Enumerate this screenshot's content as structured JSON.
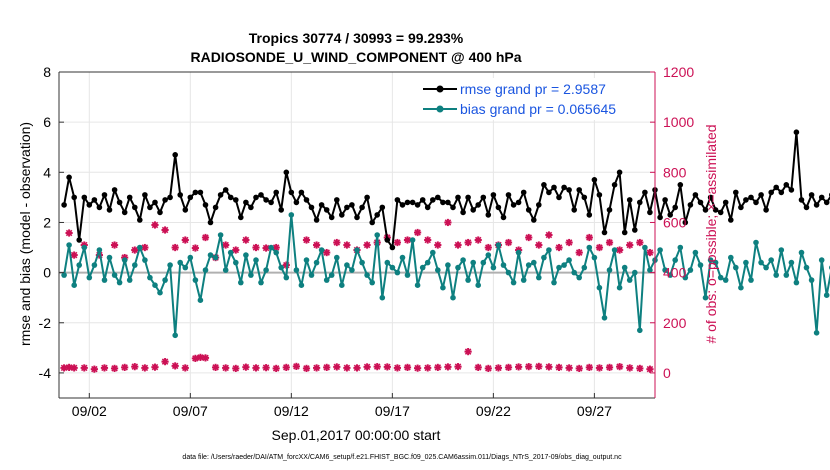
{
  "title_line1": "Tropics 30774 / 30993 = 99.293%",
  "title_line2": "RADIOSONDE_U_WIND_COMPONENT @ 400 hPa",
  "xlabel": "Sep.01,2017 00:00:00 start",
  "footer": "data file: /Users/raeder/DAI/ATM_forcXX/CAM6_setup/f.e21.FHIST_BGC.f09_025.CAM6assim.011/Diags_NTrS_2017-09/obs_diag_output.nc",
  "colors": {
    "rmse": "#000000",
    "bias": "#0e8080",
    "obs": "#cc1155",
    "zero": "#b0b0b0"
  },
  "chart_data": {
    "type": "line",
    "title": "Tropics 30774 / 30993 = 99.293%  RADIOSONDE_U_WIND_COMPONENT @ 400 hPa",
    "xlabel": "Sep.01,2017 00:00:00 start",
    "ylabel": "rmse and bias (model - observation)",
    "ylabel_right": "# of obs: o=possible; ×=assimilated",
    "xlim": [
      0.5,
      30.0
    ],
    "ylim": [
      -5,
      8
    ],
    "ylim_right": [
      -100,
      1200
    ],
    "xticks": [
      {
        "x": 2,
        "label": "09/02"
      },
      {
        "x": 7,
        "label": "09/07"
      },
      {
        "x": 12,
        "label": "09/12"
      },
      {
        "x": 17,
        "label": "09/17"
      },
      {
        "x": 22,
        "label": "09/22"
      },
      {
        "x": 27,
        "label": "09/27"
      }
    ],
    "yticks_left": [
      -4,
      -2,
      0,
      2,
      4,
      6,
      8
    ],
    "yticks_right": [
      0,
      200,
      400,
      600,
      800,
      1000,
      1200
    ],
    "x_start": 0.75,
    "x_step": 0.25,
    "legend": [
      {
        "label": "rmse grand pr = 2.9587",
        "series": "rmse"
      },
      {
        "label": "bias grand pr = 0.065645",
        "series": "bias"
      }
    ],
    "series": [
      {
        "name": "rmse",
        "axis": "left",
        "values": [
          2.7,
          3.8,
          3.0,
          1.3,
          3.0,
          2.7,
          2.9,
          2.6,
          3.1,
          2.5,
          3.3,
          2.8,
          2.4,
          3.0,
          2.6,
          2.1,
          3.1,
          2.6,
          2.8,
          2.4,
          2.9,
          3.0,
          4.7,
          3.1,
          2.5,
          3.0,
          3.2,
          3.2,
          2.7,
          2.0,
          2.6,
          3.1,
          3.3,
          3.0,
          2.9,
          2.2,
          2.8,
          2.6,
          3.0,
          3.1,
          2.9,
          2.8,
          3.2,
          2.5,
          4.0,
          3.2,
          2.8,
          3.2,
          2.9,
          2.6,
          2.1,
          2.7,
          2.5,
          2.2,
          2.9,
          2.3,
          2.6,
          2.7,
          2.2,
          2.6,
          3.0,
          2.0,
          2.3,
          2.6,
          1.3,
          1.0,
          2.9,
          2.7,
          2.8,
          2.8,
          2.7,
          2.9,
          2.6,
          2.9,
          3.0,
          2.8,
          2.8,
          2.6,
          3.0,
          2.4,
          3.0,
          2.5,
          2.7,
          3.0,
          2.3,
          3.1,
          2.6,
          2.2,
          3.1,
          2.7,
          2.8,
          3.2,
          2.5,
          2.1,
          2.7,
          3.5,
          3.2,
          3.4,
          3.0,
          3.4,
          3.3,
          2.5,
          3.3,
          3.0,
          2.3,
          3.7,
          3.1,
          1.6,
          2.5,
          3.5,
          4.0,
          1.6,
          2.9,
          1.7,
          2.8,
          3.2,
          2.4,
          3.3,
          2.2,
          2.9,
          2.3,
          2.6,
          3.5,
          2.0,
          2.7,
          3.1,
          2.8,
          2.5,
          3.0,
          2.5,
          2.4,
          2.8,
          2.1,
          3.2,
          2.6,
          2.9,
          3.0,
          2.8,
          3.1,
          2.5,
          3.2,
          3.4,
          3.2,
          3.5,
          3.3,
          5.6,
          2.9,
          2.6,
          3.1,
          2.7,
          3.0,
          2.8,
          3.1,
          3.2
        ]
      },
      {
        "name": "bias",
        "axis": "left",
        "values": [
          -0.1,
          1.1,
          -0.5,
          0.3,
          1.0,
          -0.2,
          0.3,
          0.9,
          -0.3,
          0.6,
          -0.1,
          -0.4,
          0.5,
          -0.3,
          0.3,
          1.0,
          0.5,
          -0.2,
          -0.5,
          -0.8,
          -0.3,
          0.3,
          -2.5,
          0.4,
          0.2,
          0.6,
          -0.3,
          -1.1,
          0.1,
          0.7,
          0.6,
          1.5,
          0.1,
          0.8,
          0.4,
          -0.4,
          0.7,
          -0.1,
          0.5,
          -0.4,
          0.1,
          1.0,
          0.8,
          0.2,
          -0.2,
          2.3,
          0.1,
          -0.5,
          0.5,
          -0.1,
          0.4,
          0.9,
          -0.3,
          -0.1,
          0.6,
          -0.5,
          0.3,
          0.1,
          0.9,
          0.4,
          -0.1,
          -0.4,
          1.5,
          -1.0,
          0.4,
          0.2,
          0.0,
          0.6,
          -0.1,
          1.3,
          -0.5,
          0.2,
          0.4,
          0.8,
          0.1,
          -0.6,
          0.3,
          -1.0,
          0.2,
          0.5,
          -0.3,
          0.4,
          -0.5,
          0.4,
          0.7,
          0.2,
          1.1,
          0.3,
          0.0,
          -0.4,
          0.8,
          -0.3,
          0.3,
          0.4,
          -0.2,
          0.6,
          0.9,
          -0.4,
          0.2,
          0.3,
          0.5,
          0.0,
          -0.2,
          0.2,
          1.0,
          0.6,
          -0.6,
          -1.8,
          0.1,
          0.9,
          -0.6,
          0.2,
          -0.3,
          0.0,
          -2.3,
          1.0,
          0.1,
          0.5,
          0.9,
          0.1,
          -0.1,
          0.5,
          1.0,
          -0.2,
          0.1,
          0.8,
          0.3,
          -1.0,
          0.5,
          0.4,
          -0.2,
          -0.3,
          0.6,
          0.2,
          -0.6,
          0.4,
          -0.3,
          1.2,
          0.4,
          0.2,
          0.5,
          -0.1,
          0.9,
          -0.1,
          0.4,
          -0.4,
          0.8,
          0.2,
          -0.3,
          -2.4,
          0.5,
          -0.9,
          0.2,
          0.0,
          -0.1,
          -1.6,
          0.4,
          0.3,
          -1.5,
          -1.9
        ]
      },
      {
        "name": "obs_ring1",
        "axis": "right",
        "values": [
          20,
          22,
          24,
          20,
          20,
          15,
          21,
          20,
          20,
          18,
          22,
          25,
          20,
          20,
          20,
          23,
          22,
          20,
          20,
          28,
          23,
          20,
          30,
          23,
          20,
          18,
          22,
          45,
          48,
          20,
          22,
          24,
          20,
          19,
          18,
          23,
          20,
          21,
          18,
          22,
          26,
          18,
          20,
          22,
          24,
          20,
          20,
          20,
          24,
          25,
          24,
          24,
          20,
          22,
          19,
          20,
          20,
          22,
          24,
          25,
          22,
          18,
          20,
          22,
          24,
          25,
          26,
          24,
          22,
          20,
          18,
          22,
          20,
          22,
          25,
          27,
          28,
          26,
          25,
          22,
          20,
          22,
          24,
          26,
          25,
          22,
          20,
          18,
          20,
          22,
          25,
          25,
          27,
          26,
          24,
          22,
          20,
          22,
          20,
          20,
          20,
          20,
          20,
          20,
          20,
          20,
          20,
          20,
          20,
          20,
          20,
          20,
          20,
          20,
          20,
          20,
          20,
          20,
          20,
          20,
          20,
          20,
          20,
          20,
          20,
          20,
          20,
          20,
          20,
          20,
          20,
          20,
          20,
          20,
          20,
          20,
          20,
          20,
          20,
          20,
          20,
          20,
          20,
          20,
          20,
          20,
          20,
          20,
          20,
          20,
          20,
          20,
          20,
          20,
          20,
          20,
          20
        ]
      },
      {
        "name": "obs_assim_low",
        "axis": "right",
        "values": [
          20,
          18,
          22,
          17,
          18,
          14,
          20,
          18,
          19,
          16,
          21,
          23,
          18,
          19,
          18,
          21,
          21,
          18,
          18,
          26,
          22,
          18,
          28,
          22,
          18,
          16,
          21,
          43,
          46,
          18,
          21,
          22,
          18,
          17,
          16,
          21,
          18,
          20,
          17,
          21,
          24,
          16,
          18,
          20,
          22,
          18,
          18,
          18,
          22,
          23,
          22,
          22,
          18,
          20,
          17,
          18,
          18,
          20,
          22,
          23,
          20,
          16,
          18,
          20,
          22,
          23,
          24,
          22,
          20,
          18,
          16,
          20,
          18,
          20,
          23,
          25,
          26,
          24,
          23,
          20,
          18,
          20,
          22,
          24,
          23,
          20,
          18,
          16,
          18,
          20,
          23,
          23,
          25,
          24,
          22,
          20,
          18,
          20,
          18,
          18,
          18,
          18,
          18,
          18,
          18,
          18,
          18,
          18,
          18,
          18,
          18,
          18,
          18,
          18,
          18,
          18,
          18,
          18,
          18,
          18,
          18,
          18,
          18,
          18,
          18,
          18,
          18,
          18,
          18,
          18,
          18,
          18,
          18,
          18,
          18,
          18,
          18,
          18,
          18,
          18,
          18,
          18,
          18,
          18,
          18,
          18,
          18,
          18,
          18,
          18,
          18,
          18,
          18,
          18,
          18,
          18,
          18
        ]
      },
      {
        "name": "obs_possible_high",
        "axis": "right",
        "values": [
          558,
          460,
          520,
          470,
          410,
          510,
          490,
          470,
          500,
          530,
          560,
          510,
          570,
          590,
          520,
          470,
          505,
          498,
          550,
          480,
          455,
          510,
          545,
          517,
          490,
          480,
          500,
          530,
          462,
          455,
          503,
          479,
          511,
          472,
          518,
          496,
          540,
          508,
          521,
          497,
          475,
          483,
          546,
          510,
          578,
          519,
          501,
          496,
          526,
          486,
          523,
          510,
          456,
          497,
          533,
          468,
          510,
          500,
          542,
          509,
          480,
          522,
          551,
          475,
          507,
          510,
          522,
          536,
          526,
          570,
          518,
          502,
          534,
          481,
          528,
          507,
          520,
          499,
          516,
          493,
          535,
          507,
          518,
          471,
          532,
          473,
          522,
          498,
          560,
          513,
          502,
          531,
          482,
          527,
          496,
          521,
          507,
          530,
          512,
          522,
          510,
          520,
          480,
          510,
          524,
          458,
          501,
          517,
          537,
          543,
          562,
          508,
          524,
          497,
          554,
          509,
          525,
          494,
          515,
          503,
          541,
          514,
          532,
          493,
          513,
          504,
          519,
          480,
          497,
          523,
          535,
          499,
          507,
          541,
          559,
          534,
          507,
          474,
          522,
          508,
          546,
          532,
          496,
          510,
          527,
          502,
          479,
          512,
          520,
          503,
          528,
          495,
          470,
          510,
          498,
          490
        ]
      }
    ],
    "obs_markers_assim": [
      {
        "x": 1.0,
        "y": 558
      },
      {
        "x": 1.25,
        "y": 470
      },
      {
        "x": 1.75,
        "y": 510
      },
      {
        "x": 2.5,
        "y": 470
      },
      {
        "x": 3.25,
        "y": 510
      },
      {
        "x": 3.75,
        "y": 460
      },
      {
        "x": 4.25,
        "y": 490
      },
      {
        "x": 4.75,
        "y": 500
      },
      {
        "x": 5.25,
        "y": 590
      },
      {
        "x": 5.75,
        "y": 570
      },
      {
        "x": 6.25,
        "y": 500
      },
      {
        "x": 6.75,
        "y": 530
      },
      {
        "x": 7.25,
        "y": 498
      },
      {
        "x": 7.75,
        "y": 540
      },
      {
        "x": 8.25,
        "y": 460
      },
      {
        "x": 8.75,
        "y": 510
      },
      {
        "x": 9.25,
        "y": 490
      },
      {
        "x": 9.75,
        "y": 530
      },
      {
        "x": 10.25,
        "y": 500
      },
      {
        "x": 10.75,
        "y": 498
      },
      {
        "x": 11.25,
        "y": 500
      },
      {
        "x": 11.75,
        "y": 430
      },
      {
        "x": 12.75,
        "y": 530
      },
      {
        "x": 13.25,
        "y": 510
      },
      {
        "x": 13.75,
        "y": 480
      },
      {
        "x": 14.25,
        "y": 520
      },
      {
        "x": 14.75,
        "y": 510
      },
      {
        "x": 15.25,
        "y": 490
      },
      {
        "x": 15.75,
        "y": 510
      },
      {
        "x": 16.25,
        "y": 520
      },
      {
        "x": 16.75,
        "y": 540
      },
      {
        "x": 17.25,
        "y": 520
      },
      {
        "x": 17.75,
        "y": 530
      },
      {
        "x": 18.25,
        "y": 560
      },
      {
        "x": 18.75,
        "y": 530
      },
      {
        "x": 19.25,
        "y": 510
      },
      {
        "x": 19.75,
        "y": 600
      },
      {
        "x": 20.25,
        "y": 510
      },
      {
        "x": 20.75,
        "y": 520
      },
      {
        "x": 21.25,
        "y": 530
      },
      {
        "x": 21.75,
        "y": 500
      },
      {
        "x": 22.25,
        "y": 510
      },
      {
        "x": 22.75,
        "y": 520
      },
      {
        "x": 23.25,
        "y": 490
      },
      {
        "x": 23.75,
        "y": 540
      },
      {
        "x": 24.25,
        "y": 510
      },
      {
        "x": 24.75,
        "y": 550
      },
      {
        "x": 25.25,
        "y": 500
      },
      {
        "x": 25.75,
        "y": 520
      },
      {
        "x": 26.25,
        "y": 480
      },
      {
        "x": 26.75,
        "y": 540
      },
      {
        "x": 27.25,
        "y": 500
      },
      {
        "x": 27.75,
        "y": 520
      },
      {
        "x": 28.25,
        "y": 490
      },
      {
        "x": 28.75,
        "y": 510
      },
      {
        "x": 29.25,
        "y": 520
      },
      {
        "x": 29.75,
        "y": 480
      }
    ],
    "obs_markers_low": [
      {
        "x": 0.75,
        "y": 20
      },
      {
        "x": 1.0,
        "y": 22
      },
      {
        "x": 1.25,
        "y": 20
      },
      {
        "x": 1.75,
        "y": 20
      },
      {
        "x": 2.25,
        "y": 15
      },
      {
        "x": 2.75,
        "y": 20
      },
      {
        "x": 3.25,
        "y": 18
      },
      {
        "x": 3.75,
        "y": 22
      },
      {
        "x": 4.25,
        "y": 25
      },
      {
        "x": 4.75,
        "y": 20
      },
      {
        "x": 5.25,
        "y": 23
      },
      {
        "x": 5.75,
        "y": 45
      },
      {
        "x": 6.25,
        "y": 28
      },
      {
        "x": 6.75,
        "y": 20
      },
      {
        "x": 7.25,
        "y": 58
      },
      {
        "x": 7.5,
        "y": 62
      },
      {
        "x": 7.75,
        "y": 60
      },
      {
        "x": 8.25,
        "y": 22
      },
      {
        "x": 8.75,
        "y": 20
      },
      {
        "x": 9.25,
        "y": 18
      },
      {
        "x": 9.75,
        "y": 23
      },
      {
        "x": 10.25,
        "y": 20
      },
      {
        "x": 10.75,
        "y": 21
      },
      {
        "x": 11.25,
        "y": 18
      },
      {
        "x": 11.75,
        "y": 22
      },
      {
        "x": 12.25,
        "y": 26
      },
      {
        "x": 12.75,
        "y": 18
      },
      {
        "x": 13.25,
        "y": 20
      },
      {
        "x": 13.75,
        "y": 22
      },
      {
        "x": 14.25,
        "y": 24
      },
      {
        "x": 14.75,
        "y": 20
      },
      {
        "x": 15.25,
        "y": 20
      },
      {
        "x": 15.75,
        "y": 24
      },
      {
        "x": 16.25,
        "y": 25
      },
      {
        "x": 16.75,
        "y": 24
      },
      {
        "x": 17.25,
        "y": 20
      },
      {
        "x": 17.75,
        "y": 22
      },
      {
        "x": 18.25,
        "y": 19
      },
      {
        "x": 18.75,
        "y": 20
      },
      {
        "x": 19.25,
        "y": 22
      },
      {
        "x": 19.75,
        "y": 24
      },
      {
        "x": 20.25,
        "y": 25
      },
      {
        "x": 20.75,
        "y": 85
      },
      {
        "x": 21.25,
        "y": 22
      },
      {
        "x": 21.75,
        "y": 18
      },
      {
        "x": 22.25,
        "y": 20
      },
      {
        "x": 22.75,
        "y": 22
      },
      {
        "x": 23.25,
        "y": 24
      },
      {
        "x": 23.75,
        "y": 25
      },
      {
        "x": 24.25,
        "y": 26
      },
      {
        "x": 24.75,
        "y": 24
      },
      {
        "x": 25.25,
        "y": 22
      },
      {
        "x": 25.75,
        "y": 20
      },
      {
        "x": 26.25,
        "y": 18
      },
      {
        "x": 26.75,
        "y": 22
      },
      {
        "x": 27.25,
        "y": 20
      },
      {
        "x": 27.75,
        "y": 22
      },
      {
        "x": 28.25,
        "y": 25
      },
      {
        "x": 28.75,
        "y": 20
      },
      {
        "x": 29.25,
        "y": 18
      },
      {
        "x": 29.75,
        "y": 15
      }
    ]
  }
}
